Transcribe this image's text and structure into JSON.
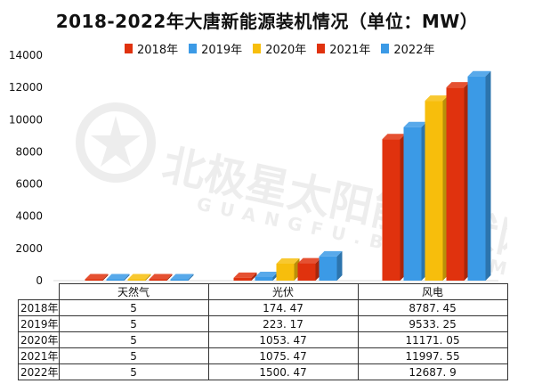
{
  "title": "2018-2022年大唐新能源装机情况（单位：MW）",
  "colors": {
    "2018年": "#e0320e",
    "2019年": "#3b9ae6",
    "2020年": "#f7be0c",
    "2021年": "#e0320e",
    "2022年": "#3b9ae6"
  },
  "watermark": {
    "text_main": "北极星太阳能光伏网",
    "text_sub": "GUANGFU.BJX.COM.CN"
  },
  "chart_data": {
    "type": "bar",
    "categories": [
      "天然气",
      "光伏",
      "风电"
    ],
    "series": [
      {
        "name": "2018年",
        "values": [
          5,
          174.47,
          8787.45
        ]
      },
      {
        "name": "2019年",
        "values": [
          5,
          223.17,
          9533.25
        ]
      },
      {
        "name": "2020年",
        "values": [
          5,
          1053.47,
          11171.05
        ]
      },
      {
        "name": "2021年",
        "values": [
          5,
          1075.47,
          11997.55
        ]
      },
      {
        "name": "2022年",
        "values": [
          5,
          1500.47,
          12687.9
        ]
      }
    ],
    "ylim": [
      0,
      14000
    ],
    "yticks": [
      "0",
      "2000",
      "4000",
      "6000",
      "8000",
      "10000",
      "12000",
      "14000"
    ],
    "legend_position": "top",
    "grid": false
  },
  "table": {
    "headers": [
      "天然气",
      "光伏",
      "风电"
    ],
    "rows": [
      {
        "year": "2018年",
        "cells": [
          "5",
          "174. 47",
          "8787. 45"
        ]
      },
      {
        "year": "2019年",
        "cells": [
          "5",
          "223. 17",
          "9533. 25"
        ]
      },
      {
        "year": "2020年",
        "cells": [
          "5",
          "1053. 47",
          "11171. 05"
        ]
      },
      {
        "year": "2021年",
        "cells": [
          "5",
          "1075. 47",
          "11997. 55"
        ]
      },
      {
        "year": "2022年",
        "cells": [
          "5",
          "1500. 47",
          "12687. 9"
        ]
      }
    ]
  }
}
